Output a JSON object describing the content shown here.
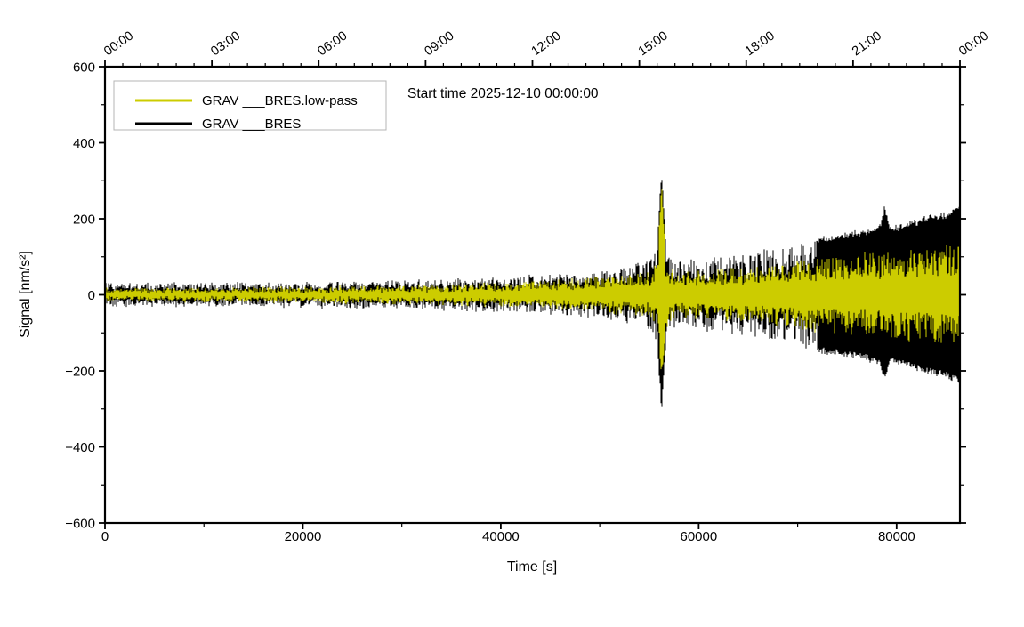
{
  "figure": {
    "background": "#ffffff",
    "annotation": "Start time 2025-12-10 00:00:00"
  },
  "chart_data": {
    "type": "line",
    "title": "",
    "xlabel": "Time [s]",
    "ylabel": "Signal [nm/s²]",
    "xlim": [
      0,
      86400
    ],
    "ylim": [
      -600,
      600
    ],
    "grid": false,
    "legend_position": "top-left",
    "frame_color": "#000000",
    "x_axis_bottom": {
      "major_ticks": [
        0,
        20000,
        40000,
        60000,
        80000
      ],
      "labels": [
        "0",
        "20000",
        "40000",
        "60000",
        "80000"
      ],
      "minor_ticks": [
        10000,
        30000,
        50000,
        70000
      ]
    },
    "x_axis_top": {
      "major_ticks_s": [
        0,
        10800,
        21600,
        32400,
        43200,
        54000,
        64800,
        75600,
        86400
      ],
      "labels": [
        "00:00",
        "03:00",
        "06:00",
        "09:00",
        "12:00",
        "15:00",
        "18:00",
        "21:00",
        "00:00"
      ],
      "minor_interval_s": 1800,
      "label_rotation_deg": -35
    },
    "y_axis": {
      "major_ticks": [
        600,
        400,
        200,
        0,
        -200,
        -400,
        -600
      ],
      "labels": [
        "600",
        "400",
        "200",
        "0",
        "−200",
        "−400",
        "−600"
      ],
      "minor_interval": 100
    },
    "legend": {
      "entries": [
        {
          "label": "GRAV ___BRES.low-pass",
          "color": "#cccc00"
        },
        {
          "label": "GRAV ___BRES",
          "color": "#000000"
        }
      ]
    },
    "notable_events": [
      {
        "time_s": 56250,
        "peak": 340,
        "trough": -310
      },
      {
        "time_s": 78800,
        "peak": 245,
        "trough": -232
      }
    ],
    "series": [
      {
        "name": "GRAV ___BRES",
        "color": "#000000",
        "z": 0,
        "env_pos": [
          [
            0,
            28
          ],
          [
            10000,
            30
          ],
          [
            20000,
            32
          ],
          [
            30000,
            36
          ],
          [
            38000,
            42
          ],
          [
            44000,
            50
          ],
          [
            48000,
            56
          ],
          [
            52000,
            68
          ],
          [
            55000,
            88
          ],
          [
            55800,
            130
          ],
          [
            56250,
            340
          ],
          [
            56700,
            130
          ],
          [
            57500,
            92
          ],
          [
            60000,
            90
          ],
          [
            63000,
            102
          ],
          [
            66000,
            114
          ],
          [
            69000,
            128
          ],
          [
            71500,
            148
          ],
          [
            74000,
            158
          ],
          [
            76500,
            168
          ],
          [
            78300,
            185
          ],
          [
            78800,
            245
          ],
          [
            79300,
            178
          ],
          [
            81000,
            190
          ],
          [
            83000,
            208
          ],
          [
            85000,
            218
          ],
          [
            86400,
            238
          ]
        ],
        "env_neg": [
          [
            0,
            28
          ],
          [
            10000,
            30
          ],
          [
            20000,
            32
          ],
          [
            30000,
            36
          ],
          [
            38000,
            42
          ],
          [
            44000,
            50
          ],
          [
            48000,
            56
          ],
          [
            52000,
            68
          ],
          [
            55000,
            88
          ],
          [
            55800,
            130
          ],
          [
            56250,
            310
          ],
          [
            56700,
            130
          ],
          [
            57500,
            92
          ],
          [
            60000,
            90
          ],
          [
            63000,
            102
          ],
          [
            66000,
            114
          ],
          [
            69000,
            128
          ],
          [
            71500,
            148
          ],
          [
            74000,
            158
          ],
          [
            76500,
            168
          ],
          [
            78300,
            185
          ],
          [
            78800,
            232
          ],
          [
            79300,
            178
          ],
          [
            81000,
            190
          ],
          [
            83000,
            208
          ],
          [
            85000,
            218
          ],
          [
            86400,
            232
          ]
        ]
      },
      {
        "name": "GRAV ___BRES.low-pass",
        "color": "#cccc00",
        "z": 1,
        "env_pos": [
          [
            0,
            16
          ],
          [
            10000,
            17
          ],
          [
            20000,
            19
          ],
          [
            30000,
            23
          ],
          [
            38000,
            28
          ],
          [
            44000,
            34
          ],
          [
            48000,
            41
          ],
          [
            52000,
            50
          ],
          [
            55000,
            62
          ],
          [
            55800,
            85
          ],
          [
            56250,
            305
          ],
          [
            56700,
            88
          ],
          [
            57500,
            62
          ],
          [
            60000,
            62
          ],
          [
            63000,
            68
          ],
          [
            66000,
            76
          ],
          [
            69000,
            86
          ],
          [
            71500,
            97
          ],
          [
            74000,
            104
          ],
          [
            76500,
            110
          ],
          [
            78800,
            114
          ],
          [
            81000,
            118
          ],
          [
            83000,
            124
          ],
          [
            85000,
            130
          ],
          [
            86400,
            137
          ]
        ],
        "env_neg": [
          [
            0,
            16
          ],
          [
            10000,
            17
          ],
          [
            20000,
            19
          ],
          [
            30000,
            23
          ],
          [
            38000,
            28
          ],
          [
            44000,
            34
          ],
          [
            48000,
            41
          ],
          [
            52000,
            50
          ],
          [
            55000,
            62
          ],
          [
            55800,
            85
          ],
          [
            56250,
            220
          ],
          [
            56700,
            88
          ],
          [
            57500,
            62
          ],
          [
            60000,
            62
          ],
          [
            63000,
            68
          ],
          [
            66000,
            76
          ],
          [
            69000,
            86
          ],
          [
            71500,
            97
          ],
          [
            74000,
            104
          ],
          [
            76500,
            110
          ],
          [
            78800,
            114
          ],
          [
            81000,
            118
          ],
          [
            83000,
            124
          ],
          [
            85000,
            130
          ],
          [
            86400,
            137
          ]
        ]
      }
    ]
  }
}
